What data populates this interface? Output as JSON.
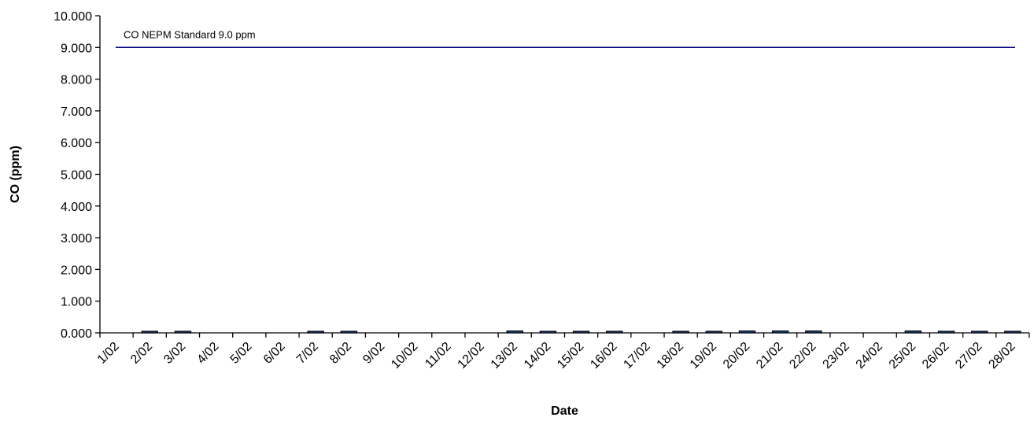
{
  "chart_data": {
    "type": "bar",
    "xlabel": "Date",
    "ylabel": "CO (ppm)",
    "ylim": [
      0,
      10
    ],
    "ytick_values": [
      0,
      1,
      2,
      3,
      4,
      5,
      6,
      7,
      8,
      9,
      10
    ],
    "ytick_labels": [
      "0.000",
      "1.000",
      "2.000",
      "3.000",
      "4.000",
      "5.000",
      "6.000",
      "7.000",
      "8.000",
      "9.000",
      "10.000"
    ],
    "categories": [
      "1/02",
      "2/02",
      "3/02",
      "4/02",
      "5/02",
      "6/02",
      "7/02",
      "8/02",
      "9/02",
      "10/02",
      "11/02",
      "12/02",
      "13/02",
      "14/02",
      "15/02",
      "16/02",
      "17/02",
      "18/02",
      "19/02",
      "20/02",
      "21/02",
      "22/02",
      "23/02",
      "24/02",
      "25/02",
      "26/02",
      "27/02",
      "28/02"
    ],
    "series": [
      {
        "color": "#1f4e9a",
        "values": [
          0,
          0.02,
          0.02,
          0,
          0,
          0,
          0.02,
          0.02,
          0,
          0,
          0,
          0,
          0.06,
          0.02,
          0.02,
          0.02,
          0,
          0.02,
          0.02,
          0.06,
          0.06,
          0.06,
          0,
          0,
          0.06,
          0.02,
          0.02,
          0.02
        ]
      }
    ],
    "reference_line": {
      "value": 9.0,
      "label": "CO NEPM Standard 9.0 ppm",
      "color": "#000080"
    },
    "grid": false,
    "legend": "none"
  }
}
